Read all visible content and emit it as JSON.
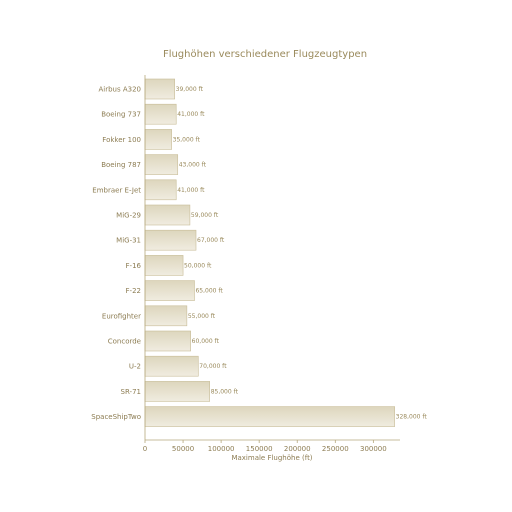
{
  "chart_data": {
    "type": "bar",
    "orientation": "horizontal",
    "title": "Flughöhen verschiedener Flugzeugtypen",
    "xlabel": "Maximale Flughöhe (ft)",
    "ylabel": "",
    "xlim": [
      0,
      335000
    ],
    "xticks": [
      0,
      50000,
      100000,
      150000,
      200000,
      250000,
      300000
    ],
    "categories": [
      "Airbus A320",
      "Boeing 737",
      "Fokker 100",
      "Boeing 787",
      "Embraer E-Jet",
      "MiG-29",
      "MiG-31",
      "F-16",
      "F-22",
      "Eurofighter",
      "Concorde",
      "U-2",
      "SR-71",
      "SpaceShipTwo"
    ],
    "values": [
      39000,
      41000,
      35000,
      43000,
      41000,
      59000,
      67000,
      50000,
      65000,
      55000,
      60000,
      70000,
      85000,
      328000
    ],
    "data_labels": [
      "39,000 ft",
      "41,000 ft",
      "35,000 ft",
      "43,000 ft",
      "41,000 ft",
      "59,000 ft",
      "67,000 ft",
      "50,000 ft",
      "65,000 ft",
      "55,000 ft",
      "60,000 ft",
      "70,000 ft",
      "85,000 ft",
      "328,000 ft"
    ],
    "colors": {
      "bar_fill_top": "#ddd6bd",
      "bar_fill_bottom": "#f0ece0",
      "bar_stroke": "#c8bd98",
      "text": "#8c7c52",
      "axis": "#b5a77c"
    },
    "grid": false,
    "legend": "none"
  }
}
